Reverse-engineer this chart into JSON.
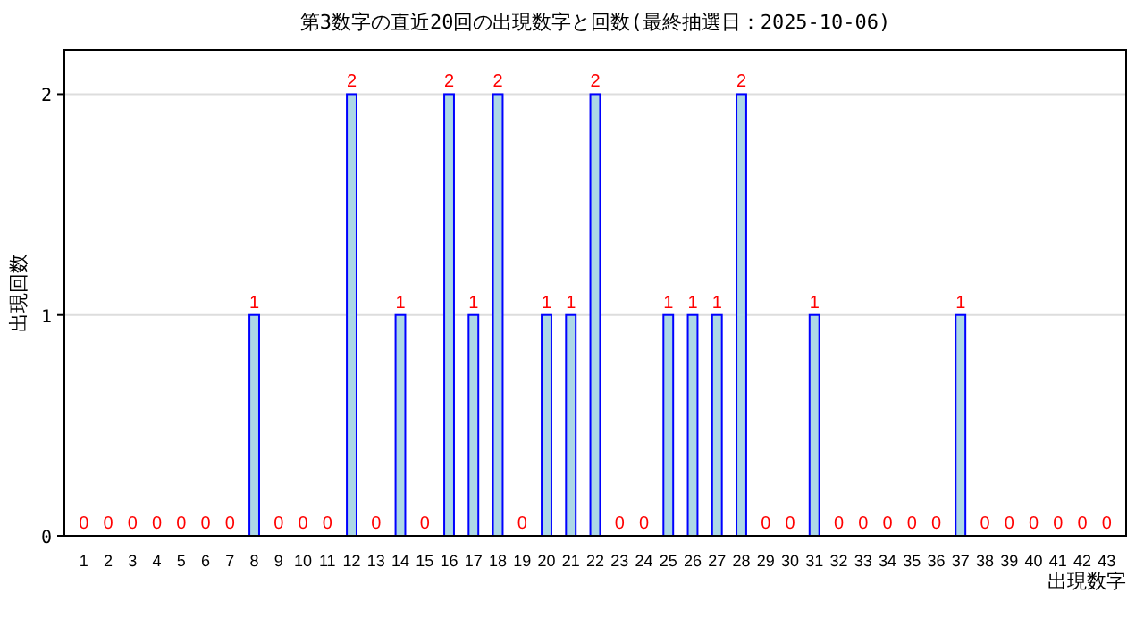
{
  "chart_data": {
    "type": "bar",
    "title": "第3数字の直近20回の出現数字と回数(最終抽選日：2025-10-06)",
    "xlabel": "出現数字",
    "ylabel": "出現回数",
    "categories": [
      "1",
      "2",
      "3",
      "4",
      "5",
      "6",
      "7",
      "8",
      "9",
      "10",
      "11",
      "12",
      "13",
      "14",
      "15",
      "16",
      "17",
      "18",
      "19",
      "20",
      "21",
      "22",
      "23",
      "24",
      "25",
      "26",
      "27",
      "28",
      "29",
      "30",
      "31",
      "32",
      "33",
      "34",
      "35",
      "36",
      "37",
      "38",
      "39",
      "40",
      "41",
      "42",
      "43"
    ],
    "values": [
      0,
      0,
      0,
      0,
      0,
      0,
      0,
      1,
      0,
      0,
      0,
      2,
      0,
      1,
      0,
      2,
      1,
      2,
      0,
      1,
      1,
      2,
      0,
      0,
      1,
      1,
      1,
      2,
      0,
      0,
      1,
      0,
      0,
      0,
      0,
      0,
      1,
      0,
      0,
      0,
      0,
      0,
      0
    ],
    "color": "#add8e6",
    "ylim": [
      0,
      2.2
    ],
    "yticks": [
      0,
      1,
      2
    ],
    "grid": "y",
    "data_labels": true
  }
}
